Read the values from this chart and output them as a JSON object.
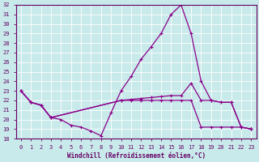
{
  "xlabel": "Windchill (Refroidissement éolien,°C)",
  "x_values": [
    0,
    1,
    2,
    3,
    4,
    5,
    6,
    7,
    8,
    9,
    10,
    11,
    12,
    13,
    14,
    15,
    16,
    17,
    18,
    19,
    20,
    21,
    22,
    23
  ],
  "line1_y": [
    23.0,
    21.8,
    21.5,
    20.2,
    20.0,
    19.4,
    19.2,
    18.8,
    18.3,
    20.7,
    23.0,
    24.5,
    26.3,
    27.6,
    29.0,
    31.0,
    32.0,
    29.0,
    24.0,
    22.0,
    21.8,
    21.8,
    19.2,
    19.0
  ],
  "line2_x": [
    0,
    1,
    2,
    3,
    10,
    11,
    12,
    13,
    14,
    15,
    16,
    17,
    18,
    19,
    20,
    21,
    22,
    23
  ],
  "line2_y": [
    23.0,
    21.8,
    21.5,
    20.2,
    22.0,
    22.1,
    22.2,
    22.3,
    22.4,
    22.5,
    22.5,
    23.8,
    22.0,
    22.0,
    21.8,
    21.8,
    19.2,
    19.0
  ],
  "line3_x": [
    0,
    1,
    2,
    3,
    10,
    11,
    12,
    13,
    14,
    15,
    16,
    17,
    18,
    19,
    20,
    21,
    22,
    23
  ],
  "line3_y": [
    23.0,
    21.8,
    21.5,
    20.2,
    22.0,
    22.0,
    22.0,
    22.0,
    22.0,
    22.0,
    22.0,
    22.0,
    19.2,
    19.2,
    19.2,
    19.2,
    19.2,
    19.0
  ],
  "ylim": [
    18,
    32
  ],
  "xlim_min": -0.5,
  "xlim_max": 23.5,
  "yticks": [
    18,
    19,
    20,
    21,
    22,
    23,
    24,
    25,
    26,
    27,
    28,
    29,
    30,
    31,
    32
  ],
  "xticks": [
    0,
    1,
    2,
    3,
    4,
    5,
    6,
    7,
    8,
    9,
    10,
    11,
    12,
    13,
    14,
    15,
    16,
    17,
    18,
    19,
    20,
    21,
    22,
    23
  ],
  "line_color": "#8b008b",
  "bg_color": "#c8eaea",
  "grid_color": "#b0d8d8",
  "label_color": "#660066",
  "tick_color": "#660066",
  "spine_color": "#660066"
}
